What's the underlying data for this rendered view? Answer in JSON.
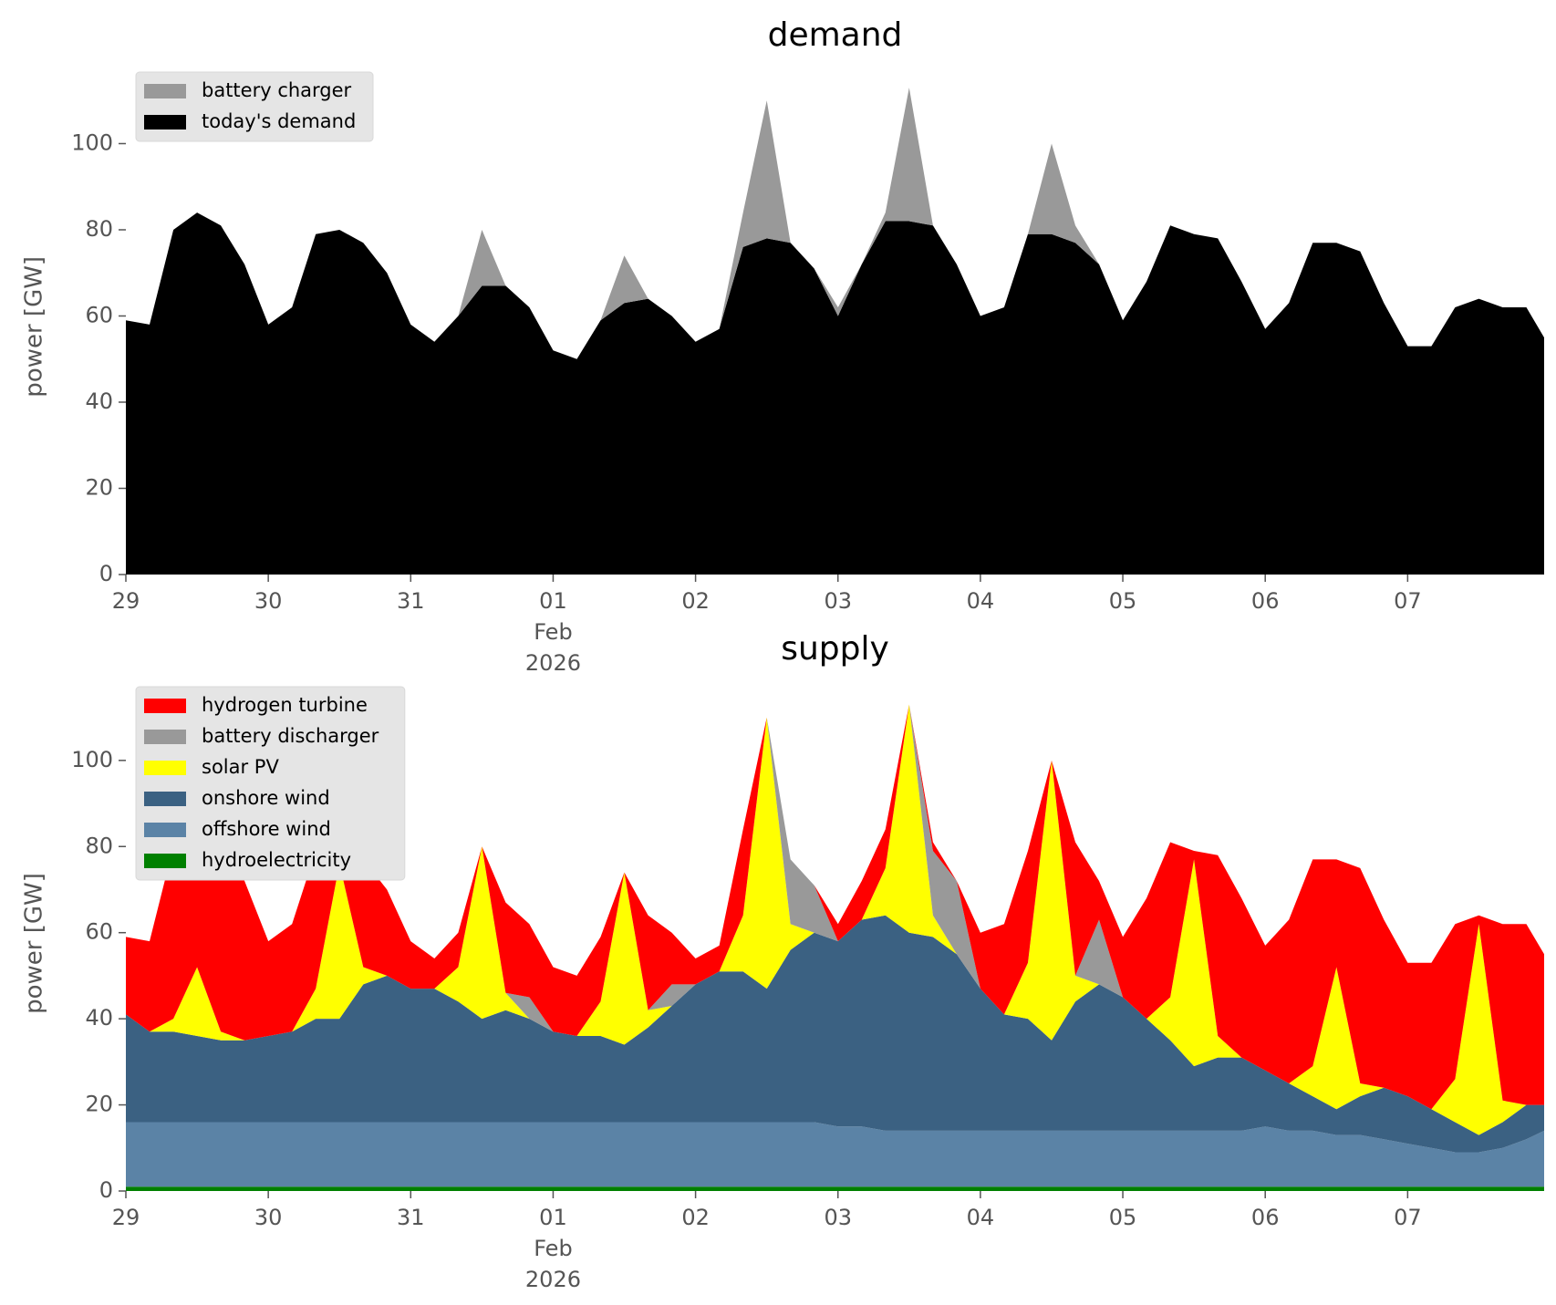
{
  "chart_data": [
    {
      "type": "area",
      "title": "demand",
      "ylabel": "power [GW]",
      "legend": "upper left",
      "x": [
        "2026-01-29T00:00",
        "2026-01-29T04:00",
        "2026-01-29T08:00",
        "2026-01-29T12:00",
        "2026-01-29T16:00",
        "2026-01-29T20:00",
        "2026-01-30T00:00",
        "2026-01-30T04:00",
        "2026-01-30T08:00",
        "2026-01-30T12:00",
        "2026-01-30T16:00",
        "2026-01-30T20:00",
        "2026-01-31T00:00",
        "2026-01-31T04:00",
        "2026-01-31T08:00",
        "2026-01-31T12:00",
        "2026-01-31T16:00",
        "2026-01-31T20:00",
        "2026-02-01T00:00",
        "2026-02-01T04:00",
        "2026-02-01T08:00",
        "2026-02-01T12:00",
        "2026-02-01T16:00",
        "2026-02-01T20:00",
        "2026-02-02T00:00",
        "2026-02-02T04:00",
        "2026-02-02T08:00",
        "2026-02-02T12:00",
        "2026-02-02T16:00",
        "2026-02-02T20:00",
        "2026-02-03T00:00",
        "2026-02-03T04:00",
        "2026-02-03T08:00",
        "2026-02-03T12:00",
        "2026-02-03T16:00",
        "2026-02-03T20:00",
        "2026-02-04T00:00",
        "2026-02-04T04:00",
        "2026-02-04T08:00",
        "2026-02-04T12:00",
        "2026-02-04T16:00",
        "2026-02-04T20:00",
        "2026-02-05T00:00",
        "2026-02-05T04:00",
        "2026-02-05T08:00",
        "2026-02-05T12:00",
        "2026-02-05T16:00",
        "2026-02-05T20:00",
        "2026-02-06T00:00",
        "2026-02-06T04:00",
        "2026-02-06T08:00",
        "2026-02-06T12:00",
        "2026-02-06T16:00",
        "2026-02-06T20:00",
        "2026-02-07T00:00",
        "2026-02-07T04:00",
        "2026-02-07T08:00",
        "2026-02-07T12:00",
        "2026-02-07T16:00",
        "2026-02-07T20:00",
        "2026-02-07T23:00"
      ],
      "xlim": [
        "2026-01-29T00:00",
        "2026-02-07T23:00"
      ],
      "xticks": [
        {
          "value": "2026-01-29T00:00",
          "label": "29"
        },
        {
          "value": "2026-01-30T00:00",
          "label": "30"
        },
        {
          "value": "2026-01-31T00:00",
          "label": "31"
        },
        {
          "value": "2026-02-01T00:00",
          "label": "01\nFeb\n2026"
        },
        {
          "value": "2026-02-02T00:00",
          "label": "02"
        },
        {
          "value": "2026-02-03T00:00",
          "label": "03"
        },
        {
          "value": "2026-02-04T00:00",
          "label": "04"
        },
        {
          "value": "2026-02-05T00:00",
          "label": "05"
        },
        {
          "value": "2026-02-06T00:00",
          "label": "06"
        },
        {
          "value": "2026-02-07T00:00",
          "label": "07"
        }
      ],
      "ylim": [
        0,
        115
      ],
      "yticks": [
        0,
        20,
        40,
        60,
        80,
        100
      ],
      "series": [
        {
          "name": "today's demand",
          "color": "#000000",
          "values": [
            59,
            58,
            80,
            84,
            81,
            72,
            58,
            62,
            79,
            80,
            77,
            70,
            58,
            54,
            60,
            67,
            67,
            62,
            52,
            50,
            59,
            63,
            64,
            60,
            54,
            57,
            76,
            78,
            77,
            71,
            60,
            72,
            82,
            82,
            81,
            72,
            60,
            62,
            79,
            79,
            77,
            72,
            59,
            68,
            81,
            79,
            78,
            68,
            57,
            63,
            77,
            77,
            75,
            63,
            53,
            53,
            62,
            64,
            62,
            62,
            55
          ]
        },
        {
          "name": "battery charger",
          "color": "#999999",
          "values": [
            0,
            0,
            0,
            0,
            0,
            0,
            0,
            0,
            0,
            0,
            0,
            0,
            0,
            0,
            0,
            13,
            0,
            0,
            0,
            0,
            0,
            11,
            0,
            0,
            0,
            0,
            8,
            32,
            0,
            0,
            2,
            0,
            2,
            31,
            0,
            0,
            0,
            0,
            0,
            21,
            4,
            0,
            0,
            0,
            0,
            0,
            0,
            0,
            0,
            0,
            0,
            0,
            0,
            0,
            0,
            0,
            0,
            0,
            0,
            0,
            0
          ]
        }
      ]
    },
    {
      "type": "area",
      "title": "supply",
      "ylabel": "power [GW]",
      "legend": "upper left",
      "x": [
        "2026-01-29T00:00",
        "2026-01-29T04:00",
        "2026-01-29T08:00",
        "2026-01-29T12:00",
        "2026-01-29T16:00",
        "2026-01-29T20:00",
        "2026-01-30T00:00",
        "2026-01-30T04:00",
        "2026-01-30T08:00",
        "2026-01-30T12:00",
        "2026-01-30T16:00",
        "2026-01-30T20:00",
        "2026-01-31T00:00",
        "2026-01-31T04:00",
        "2026-01-31T08:00",
        "2026-01-31T12:00",
        "2026-01-31T16:00",
        "2026-01-31T20:00",
        "2026-02-01T00:00",
        "2026-02-01T04:00",
        "2026-02-01T08:00",
        "2026-02-01T12:00",
        "2026-02-01T16:00",
        "2026-02-01T20:00",
        "2026-02-02T00:00",
        "2026-02-02T04:00",
        "2026-02-02T08:00",
        "2026-02-02T12:00",
        "2026-02-02T16:00",
        "2026-02-02T20:00",
        "2026-02-03T00:00",
        "2026-02-03T04:00",
        "2026-02-03T08:00",
        "2026-02-03T12:00",
        "2026-02-03T16:00",
        "2026-02-03T20:00",
        "2026-02-04T00:00",
        "2026-02-04T04:00",
        "2026-02-04T08:00",
        "2026-02-04T12:00",
        "2026-02-04T16:00",
        "2026-02-04T20:00",
        "2026-02-05T00:00",
        "2026-02-05T04:00",
        "2026-02-05T08:00",
        "2026-02-05T12:00",
        "2026-02-05T16:00",
        "2026-02-05T20:00",
        "2026-02-06T00:00",
        "2026-02-06T04:00",
        "2026-02-06T08:00",
        "2026-02-06T12:00",
        "2026-02-06T16:00",
        "2026-02-06T20:00",
        "2026-02-07T00:00",
        "2026-02-07T04:00",
        "2026-02-07T08:00",
        "2026-02-07T12:00",
        "2026-02-07T16:00",
        "2026-02-07T20:00",
        "2026-02-07T23:00"
      ],
      "xlim": [
        "2026-01-29T00:00",
        "2026-02-07T23:00"
      ],
      "xticks": [
        {
          "value": "2026-01-29T00:00",
          "label": "29"
        },
        {
          "value": "2026-01-30T00:00",
          "label": "30"
        },
        {
          "value": "2026-01-31T00:00",
          "label": "31"
        },
        {
          "value": "2026-02-01T00:00",
          "label": "01\nFeb\n2026"
        },
        {
          "value": "2026-02-02T00:00",
          "label": "02"
        },
        {
          "value": "2026-02-03T00:00",
          "label": "03"
        },
        {
          "value": "2026-02-04T00:00",
          "label": "04"
        },
        {
          "value": "2026-02-05T00:00",
          "label": "05"
        },
        {
          "value": "2026-02-06T00:00",
          "label": "06"
        },
        {
          "value": "2026-02-07T00:00",
          "label": "07"
        }
      ],
      "ylim": [
        0,
        115
      ],
      "yticks": [
        0,
        20,
        40,
        60,
        80,
        100
      ],
      "series": [
        {
          "name": "hydroelectricity",
          "color": "#008000",
          "values": [
            1,
            1,
            1,
            1,
            1,
            1,
            1,
            1,
            1,
            1,
            1,
            1,
            1,
            1,
            1,
            1,
            1,
            1,
            1,
            1,
            1,
            1,
            1,
            1,
            1,
            1,
            1,
            1,
            1,
            1,
            1,
            1,
            1,
            1,
            1,
            1,
            1,
            1,
            1,
            1,
            1,
            1,
            1,
            1,
            1,
            1,
            1,
            1,
            1,
            1,
            1,
            1,
            1,
            1,
            1,
            1,
            1,
            1,
            1,
            1,
            1
          ]
        },
        {
          "name": "offshore wind",
          "color": "#5b83a6",
          "values": [
            15,
            15,
            15,
            15,
            15,
            15,
            15,
            15,
            15,
            15,
            15,
            15,
            15,
            15,
            15,
            15,
            15,
            15,
            15,
            15,
            15,
            15,
            15,
            15,
            15,
            15,
            15,
            15,
            15,
            15,
            14,
            14,
            13,
            13,
            13,
            13,
            13,
            13,
            13,
            13,
            13,
            13,
            13,
            13,
            13,
            13,
            13,
            13,
            14,
            13,
            13,
            12,
            12,
            11,
            10,
            9,
            8,
            8,
            9,
            11,
            13
          ]
        },
        {
          "name": "onshore wind",
          "color": "#3b6182",
          "values": [
            25,
            21,
            21,
            20,
            19,
            19,
            20,
            21,
            24,
            24,
            32,
            34,
            31,
            31,
            28,
            24,
            26,
            24,
            21,
            20,
            20,
            18,
            22,
            27,
            32,
            35,
            35,
            31,
            40,
            44,
            43,
            48,
            50,
            46,
            45,
            41,
            33,
            27,
            26,
            21,
            30,
            34,
            31,
            26,
            21,
            15,
            17,
            17,
            13,
            11,
            8,
            6,
            9,
            12,
            11,
            9,
            7,
            4,
            6,
            8,
            6
          ]
        },
        {
          "name": "solar PV",
          "color": "#ffff00",
          "values": [
            0,
            0,
            3,
            16,
            2,
            0,
            0,
            0,
            7,
            36,
            4,
            0,
            0,
            0,
            8,
            40,
            4,
            0,
            0,
            0,
            8,
            40,
            4,
            0,
            0,
            0,
            13,
            63,
            6,
            0,
            0,
            0,
            11,
            53,
            5,
            0,
            0,
            0,
            13,
            65,
            6,
            0,
            0,
            0,
            10,
            48,
            5,
            0,
            0,
            0,
            7,
            33,
            3,
            0,
            0,
            0,
            10,
            49,
            5,
            0,
            0
          ]
        },
        {
          "name": "battery discharger",
          "color": "#999999",
          "values": [
            0,
            0,
            0,
            0,
            0,
            0,
            0,
            0,
            0,
            0,
            0,
            0,
            0,
            0,
            0,
            0,
            0,
            5,
            0,
            0,
            0,
            0,
            0,
            5,
            0,
            0,
            0,
            0,
            15,
            11,
            0,
            0,
            0,
            0,
            15,
            17,
            0,
            0,
            0,
            0,
            0,
            15,
            0,
            0,
            0,
            0,
            0,
            0,
            0,
            0,
            0,
            0,
            0,
            0,
            0,
            0,
            0,
            0,
            0,
            0,
            0
          ]
        },
        {
          "name": "hydrogen turbine",
          "color": "#ff0000",
          "values": [
            18,
            21,
            40,
            32,
            44,
            37,
            22,
            25,
            32,
            4,
            25,
            20,
            11,
            7,
            8,
            0,
            21,
            17,
            15,
            14,
            15,
            0,
            22,
            12,
            6,
            6,
            20,
            0,
            0,
            0,
            4,
            9,
            9,
            0,
            2,
            0,
            13,
            21,
            26,
            0,
            31,
            9,
            14,
            28,
            36,
            2,
            42,
            37,
            29,
            38,
            48,
            25,
            50,
            39,
            31,
            34,
            36,
            2,
            41,
            42,
            35
          ]
        }
      ]
    }
  ]
}
